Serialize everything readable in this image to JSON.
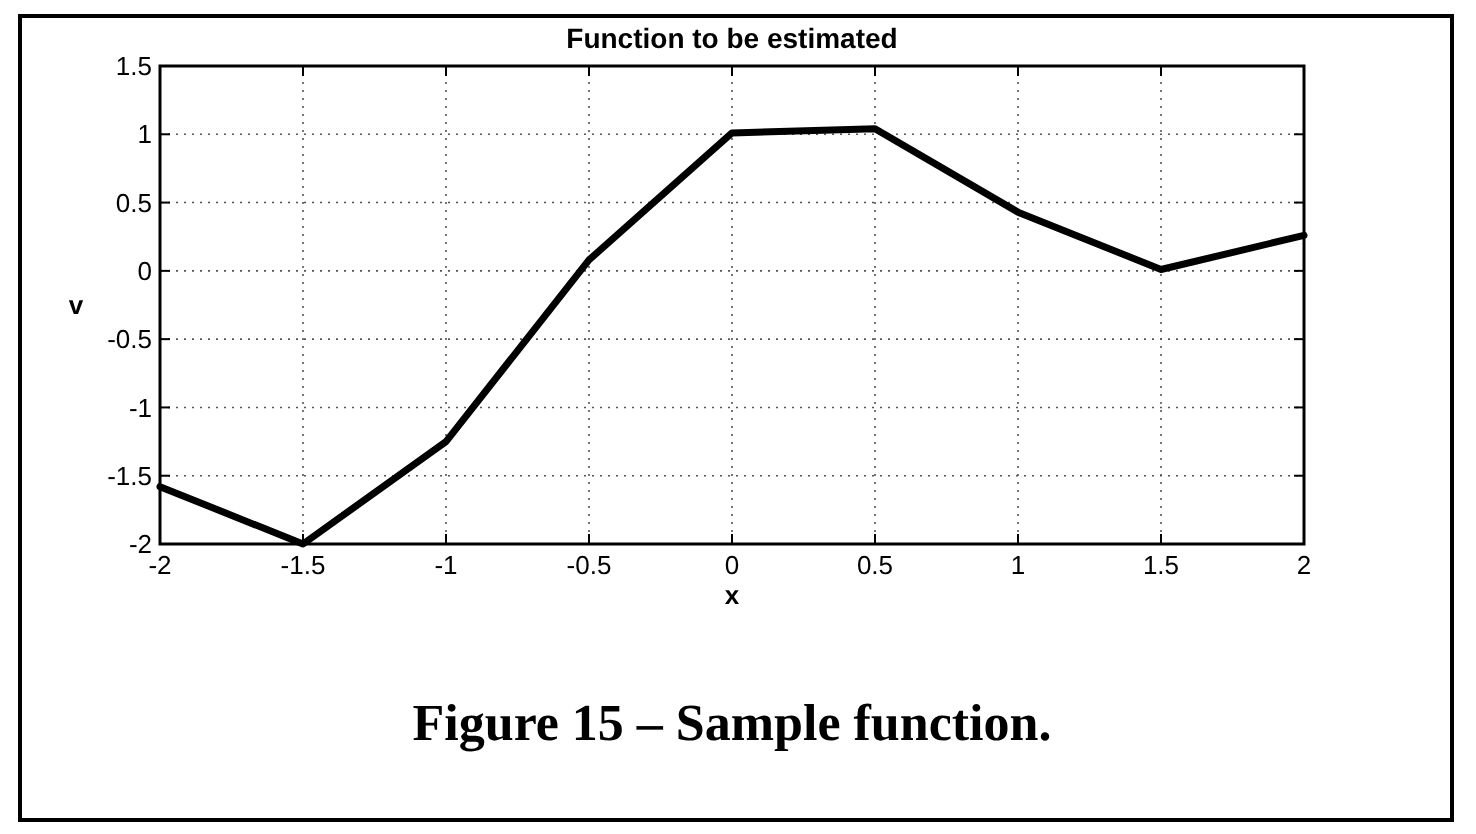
{
  "chart_data": {
    "type": "line",
    "title": "Function to be estimated",
    "xlabel": "x",
    "ylabel": "v",
    "x": [
      -2,
      -1.5,
      -1,
      -0.5,
      0,
      0.5,
      1,
      1.5,
      2
    ],
    "series": [
      {
        "color": "#000000",
        "values": [
          -1.58,
          -2,
          -1.25,
          0.08,
          1.01,
          1.04,
          0.43,
          0.01,
          0.26
        ]
      }
    ],
    "xlim": [
      -2,
      2
    ],
    "xticks": [
      -2,
      -1.5,
      -1,
      -0.5,
      0,
      0.5,
      1,
      1.5,
      2
    ],
    "ylim": [
      -2,
      1.5
    ],
    "yticks": [
      -2,
      -1.5,
      -1,
      -0.5,
      0,
      0.5,
      1,
      1.5
    ],
    "grid": true,
    "marker": "none",
    "line_style": "solid",
    "annotations": [
      "Figure 15 – Sample function."
    ]
  }
}
